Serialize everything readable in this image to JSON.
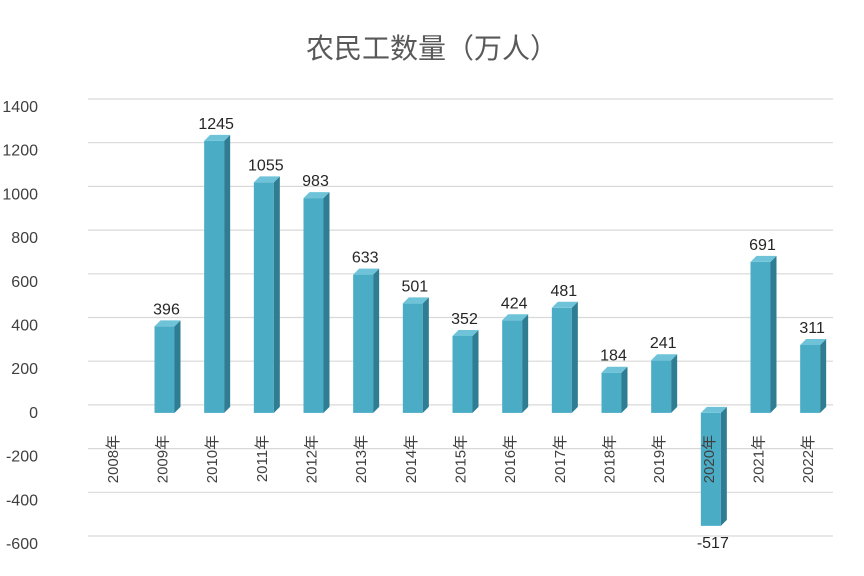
{
  "chart_data": {
    "type": "bar",
    "title": "农民工数量（万人）",
    "xlabel": "",
    "ylabel": "",
    "ylim": [
      -600,
      1400
    ],
    "yticks": [
      -600,
      -400,
      -200,
      0,
      200,
      400,
      600,
      800,
      1000,
      1200,
      1400
    ],
    "grid": true,
    "categories": [
      "2008年",
      "2009年",
      "2010年",
      "2011年",
      "2012年",
      "2013年",
      "2014年",
      "2015年",
      "2016年",
      "2017年",
      "2018年",
      "2019年",
      "2020年",
      "2021年",
      "2022年"
    ],
    "values": [
      null,
      396,
      1245,
      1055,
      983,
      633,
      501,
      352,
      424,
      481,
      184,
      241,
      -517,
      691,
      311
    ],
    "data_labels": [
      "",
      "396",
      "1245",
      "1055",
      "983",
      "633",
      "501",
      "352",
      "424",
      "481",
      "184",
      "241",
      "-517",
      "691",
      "311"
    ],
    "colors": {
      "bar_front": "#4bacc6",
      "bar_side": "#2e7d93",
      "bar_top": "#6ec3d8"
    }
  }
}
